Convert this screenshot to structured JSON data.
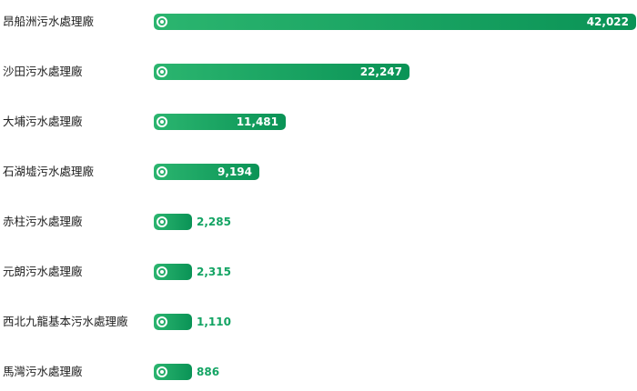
{
  "chart_data": {
    "type": "bar",
    "orientation": "horizontal",
    "categories": [
      "昂船洲污水處理廠",
      "沙田污水處理廠",
      "大埔污水處理廠",
      "石湖墟污水處理廠",
      "赤柱污水處理廠",
      "元朗污水處理廠",
      "西北九龍基本污水處理廠",
      "馬灣污水處理廠"
    ],
    "values": [
      42022,
      22247,
      11481,
      9194,
      2285,
      2315,
      1110,
      886
    ],
    "value_labels": [
      "42,022",
      "22,247",
      "11,481",
      "9,194",
      "2,285",
      "2,315",
      "1,110",
      "886"
    ],
    "title": "",
    "xlabel": "",
    "ylabel": "",
    "xlim": [
      0,
      42022
    ],
    "grid": false,
    "colors": {
      "bar_start": "#2bb56f",
      "bar_end": "#0a9356",
      "outside_label": "#14a464",
      "category_text": "#222222"
    }
  }
}
